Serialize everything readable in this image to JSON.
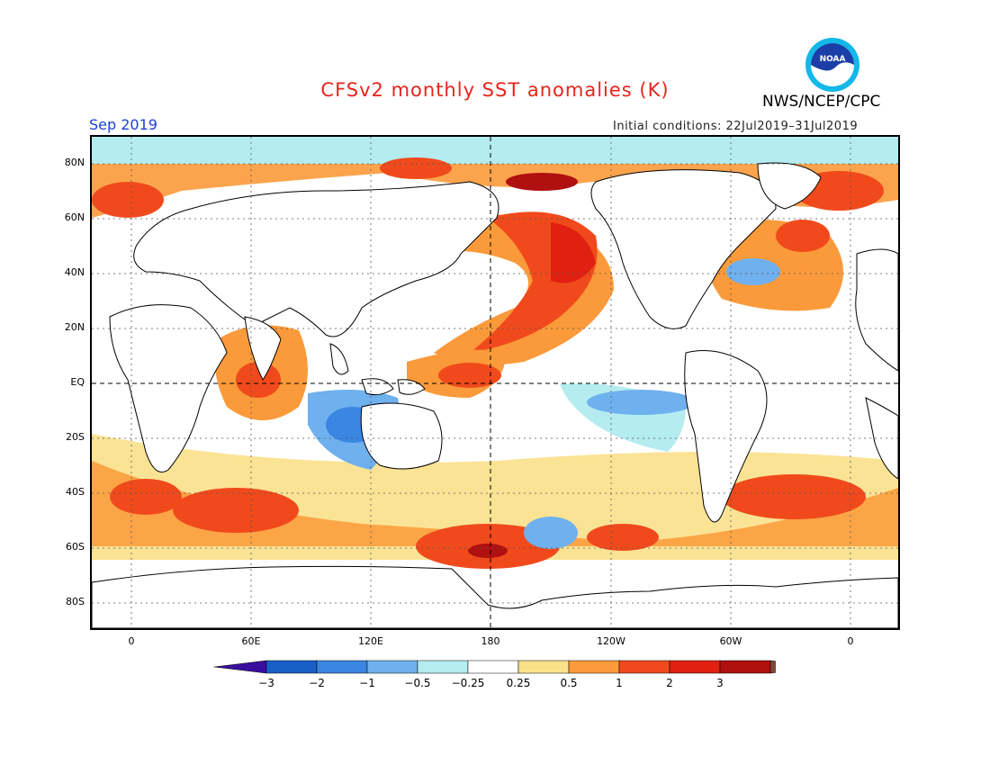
{
  "title": "CFSv2 monthly SST anomalies (K)",
  "month": "Sep 2019",
  "initial_conditions": "Initial conditions: 22Jul2019–31Jul2019",
  "agency": "NWS/NCEP/CPC",
  "logo_text": "NOAA",
  "lat_labels": [
    "80N",
    "60N",
    "40N",
    "20N",
    "EQ",
    "20S",
    "40S",
    "60S",
    "80S"
  ],
  "lon_labels": [
    "0",
    "60E",
    "120E",
    "180",
    "120W",
    "60W",
    "0"
  ],
  "colorbar": {
    "tick_labels": [
      "−3",
      "−2",
      "−1",
      "−0.5",
      "−0.25",
      "0.25",
      "0.5",
      "1",
      "2",
      "3"
    ],
    "colors": [
      "#3a0fa0",
      "#1a5fc8",
      "#3a86e0",
      "#6fb0ee",
      "#b4ecf0",
      "#ffffff",
      "#fbe08a",
      "#fb9a3a",
      "#f04a1c",
      "#e02010",
      "#b01010",
      "#7a4a3a"
    ]
  },
  "colors": {
    "title": "#e8231b",
    "month": "#1a3fd6",
    "land": "#ffffff",
    "coast": "#000000"
  }
}
